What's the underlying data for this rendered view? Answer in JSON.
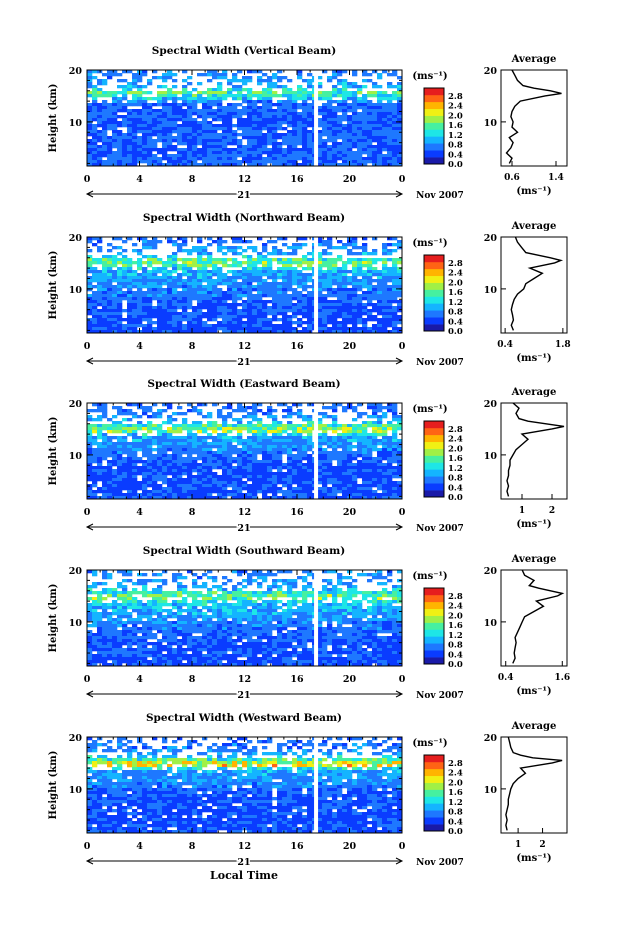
{
  "figure": {
    "xlabel": "Local Time",
    "date_label": "21",
    "month_label": "Nov 2007",
    "colorbar_unit": "(ms⁻¹)",
    "colorbar_ticks": [
      "0.0",
      "0.4",
      "0.8",
      "1.2",
      "1.6",
      "2.0",
      "2.4",
      "2.8"
    ],
    "colormap": [
      "#1a1aa8",
      "#0a3cff",
      "#1e78ff",
      "#14b4ff",
      "#1ee6e6",
      "#46f0a0",
      "#a0f046",
      "#f0f014",
      "#ffb400",
      "#ff6414",
      "#e61e1e"
    ],
    "average_title": "Average",
    "average_unit": "(ms⁻¹)",
    "ylabel": "Height (km)"
  },
  "chart_data": [
    {
      "type": "heatmap",
      "title": "Spectral Width (Vertical Beam)",
      "ylabel": "Height (km)",
      "xlabel": "",
      "x_ticks": [
        "0",
        "4",
        "8",
        "12",
        "16",
        "20",
        "0"
      ],
      "y_ticks": [
        "10",
        "20"
      ],
      "xlim": [
        0,
        24
      ],
      "ylim": [
        1.5,
        20
      ],
      "colorbar_range": [
        0,
        3
      ],
      "heights_km": [
        2,
        4,
        6,
        8,
        10,
        12,
        14,
        15,
        16,
        17,
        18,
        20
      ],
      "mean_width": [
        0.6,
        0.6,
        0.5,
        0.6,
        0.5,
        0.6,
        0.6,
        1.2,
        1.5,
        1.0,
        0.8,
        0.7
      ],
      "average_profile": {
        "x_ticks": [
          "0.6",
          "1.4"
        ],
        "xlim": [
          0.4,
          1.6
        ],
        "y_ticks": [
          "10",
          "20"
        ],
        "ylim": [
          1.5,
          20
        ],
        "height_km": [
          2,
          3,
          4,
          5,
          6,
          7,
          8,
          9,
          10,
          11,
          12,
          13,
          14,
          15,
          15.5,
          16,
          16.5,
          17,
          18,
          19,
          20
        ],
        "width": [
          0.55,
          0.6,
          0.5,
          0.58,
          0.62,
          0.55,
          0.7,
          0.6,
          0.62,
          0.58,
          0.6,
          0.65,
          0.75,
          1.2,
          1.5,
          1.3,
          1.0,
          0.8,
          0.7,
          0.65,
          0.6
        ]
      }
    },
    {
      "type": "heatmap",
      "title": "Spectral Width (Northward Beam)",
      "ylabel": "Height (km)",
      "xlabel": "",
      "x_ticks": [
        "0",
        "4",
        "8",
        "12",
        "16",
        "20",
        "0"
      ],
      "y_ticks": [
        "10",
        "20"
      ],
      "xlim": [
        0,
        24
      ],
      "ylim": [
        1.5,
        20
      ],
      "colorbar_range": [
        0,
        3
      ],
      "heights_km": [
        2,
        4,
        6,
        8,
        10,
        12,
        14,
        15,
        16,
        17,
        18,
        20
      ],
      "mean_width": [
        0.5,
        0.5,
        0.5,
        0.6,
        0.7,
        0.8,
        1.0,
        1.6,
        1.4,
        0.9,
        0.8,
        0.6
      ],
      "average_profile": {
        "x_ticks": [
          "0.4",
          "1.8"
        ],
        "xlim": [
          0.3,
          1.9
        ],
        "y_ticks": [
          "10",
          "20"
        ],
        "ylim": [
          1.5,
          20
        ],
        "height_km": [
          2,
          3,
          4,
          5,
          6,
          7,
          8,
          9,
          10,
          11,
          12,
          13,
          14,
          15,
          15.5,
          16,
          16.5,
          17,
          18,
          19,
          20
        ],
        "width": [
          0.6,
          0.55,
          0.6,
          0.58,
          0.55,
          0.58,
          0.62,
          0.7,
          0.85,
          0.9,
          1.1,
          1.3,
          1.0,
          1.6,
          1.75,
          1.5,
          1.2,
          0.9,
          0.8,
          0.7,
          0.65
        ]
      }
    },
    {
      "type": "heatmap",
      "title": "Spectral Width (Eastward Beam)",
      "ylabel": "Height (km)",
      "xlabel": "",
      "x_ticks": [
        "0",
        "4",
        "8",
        "12",
        "16",
        "20",
        "0"
      ],
      "y_ticks": [
        "10",
        "20"
      ],
      "xlim": [
        0,
        24
      ],
      "ylim": [
        1.5,
        20
      ],
      "colorbar_range": [
        0,
        3
      ],
      "heights_km": [
        2,
        4,
        6,
        8,
        10,
        12,
        14,
        15,
        16,
        17,
        18,
        20
      ],
      "mean_width": [
        0.5,
        0.5,
        0.5,
        0.5,
        0.6,
        0.8,
        0.9,
        1.8,
        1.4,
        0.9,
        0.7,
        0.6
      ],
      "average_profile": {
        "x_ticks": [
          "1",
          "2"
        ],
        "xlim": [
          0.3,
          2.5
        ],
        "y_ticks": [
          "10",
          "20"
        ],
        "ylim": [
          1.5,
          20
        ],
        "height_km": [
          2,
          3,
          4,
          5,
          6,
          7,
          8,
          9,
          10,
          11,
          12,
          13,
          14,
          15,
          15.5,
          16,
          16.5,
          17,
          18,
          19,
          20
        ],
        "width": [
          0.55,
          0.5,
          0.55,
          0.5,
          0.55,
          0.55,
          0.6,
          0.6,
          0.7,
          0.8,
          1.0,
          1.2,
          1.0,
          2.0,
          2.4,
          1.8,
          1.2,
          0.9,
          0.8,
          0.9,
          0.7
        ]
      }
    },
    {
      "type": "heatmap",
      "title": "Spectral Width (Southward Beam)",
      "ylabel": "Height (km)",
      "xlabel": "",
      "x_ticks": [
        "0",
        "4",
        "8",
        "12",
        "16",
        "20",
        "0"
      ],
      "y_ticks": [
        "10",
        "20"
      ],
      "xlim": [
        0,
        24
      ],
      "ylim": [
        1.5,
        20
      ],
      "colorbar_range": [
        0,
        3
      ],
      "heights_km": [
        2,
        4,
        6,
        8,
        10,
        12,
        14,
        15,
        16,
        17,
        18,
        20
      ],
      "mean_width": [
        0.5,
        0.5,
        0.5,
        0.6,
        0.7,
        0.9,
        1.1,
        1.6,
        1.3,
        0.9,
        0.8,
        0.7
      ],
      "average_profile": {
        "x_ticks": [
          "0.4",
          "1.6"
        ],
        "xlim": [
          0.3,
          1.7
        ],
        "y_ticks": [
          "10",
          "20"
        ],
        "ylim": [
          1.5,
          20
        ],
        "height_km": [
          2,
          3,
          4,
          5,
          6,
          7,
          8,
          9,
          10,
          11,
          12,
          13,
          14,
          15,
          15.5,
          16,
          16.5,
          17,
          18,
          19,
          20
        ],
        "width": [
          0.55,
          0.6,
          0.58,
          0.6,
          0.62,
          0.6,
          0.65,
          0.7,
          0.75,
          0.8,
          1.0,
          1.2,
          1.05,
          1.5,
          1.6,
          1.35,
          1.1,
          0.9,
          1.0,
          0.8,
          0.75
        ]
      }
    },
    {
      "type": "heatmap",
      "title": "Spectral Width (Westward Beam)",
      "ylabel": "Height (km)",
      "xlabel": "Local Time",
      "x_ticks": [
        "0",
        "4",
        "8",
        "12",
        "16",
        "20",
        "0"
      ],
      "y_ticks": [
        "10",
        "20"
      ],
      "xlim": [
        0,
        24
      ],
      "ylim": [
        1.5,
        20
      ],
      "colorbar_range": [
        0,
        3
      ],
      "heights_km": [
        2,
        4,
        6,
        8,
        10,
        12,
        14,
        15,
        16,
        17,
        18,
        20
      ],
      "mean_width": [
        0.5,
        0.5,
        0.5,
        0.5,
        0.6,
        0.8,
        0.9,
        2.2,
        1.4,
        0.8,
        0.7,
        0.6
      ],
      "average_profile": {
        "x_ticks": [
          "1",
          "2"
        ],
        "xlim": [
          0.3,
          3.0
        ],
        "y_ticks": [
          "10",
          "20"
        ],
        "ylim": [
          1.5,
          20
        ],
        "height_km": [
          2,
          3,
          4,
          5,
          6,
          7,
          8,
          9,
          10,
          11,
          12,
          13,
          14,
          15,
          15.5,
          16,
          16.5,
          17,
          18,
          19,
          20
        ],
        "width": [
          0.55,
          0.5,
          0.55,
          0.5,
          0.55,
          0.6,
          0.6,
          0.65,
          0.7,
          0.8,
          1.0,
          1.3,
          1.1,
          2.4,
          2.8,
          1.6,
          1.1,
          0.8,
          0.7,
          0.65,
          0.6
        ]
      }
    }
  ]
}
